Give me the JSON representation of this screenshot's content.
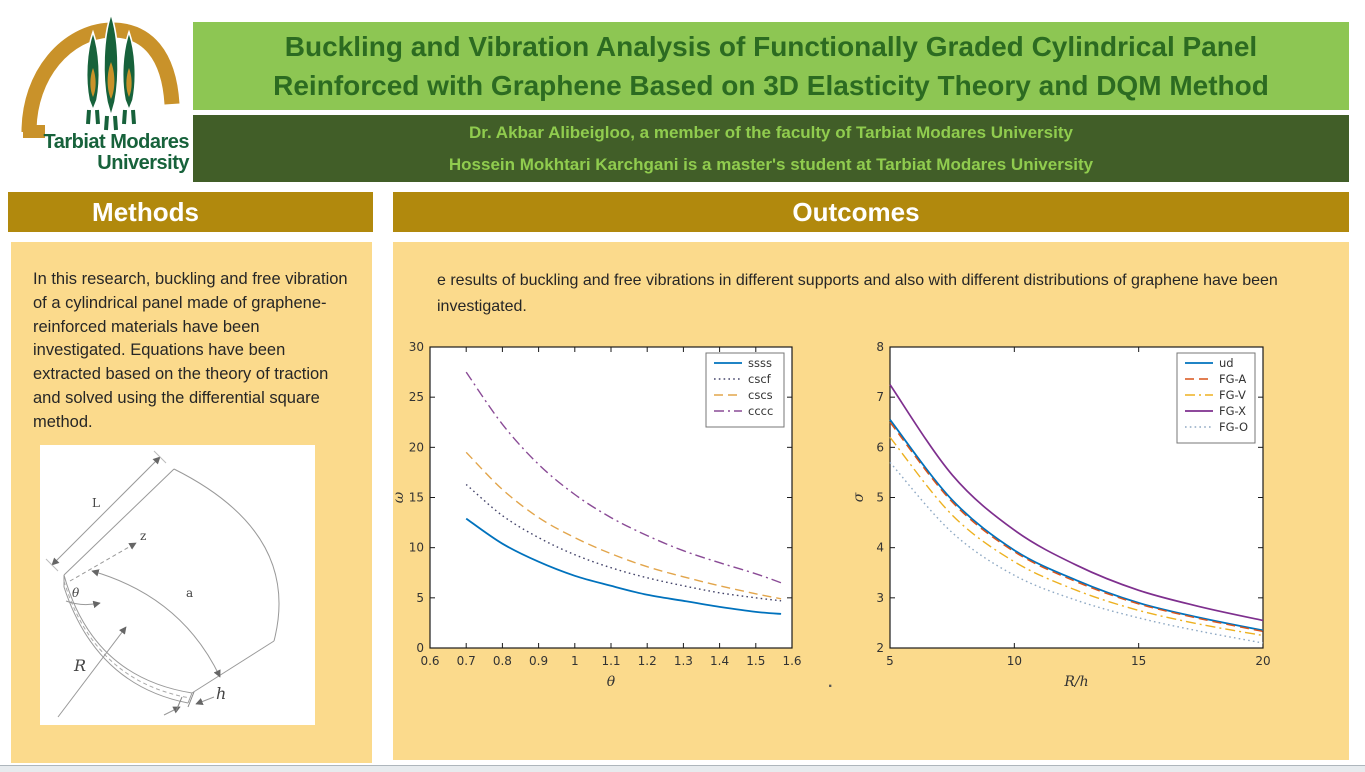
{
  "logo": {
    "university": "Tarbiat Modares University",
    "line1": "Tarbiat Modares",
    "line2": "University",
    "colors": {
      "arch": "#C9922A",
      "tree": "#17623B",
      "text": "#17623B"
    }
  },
  "header": {
    "title_line1": "Buckling and Vibration Analysis of Functionally Graded Cylindrical Panel",
    "title_line2": "Reinforced with Graphene Based on 3D Elasticity Theory and DQM Method",
    "authors_line1": "Dr. Akbar Alibeigloo, a member of the faculty of Tarbiat Modares University",
    "authors_line2": "Hossein Mokhtari Karchgani is a master's student at Tarbiat Modares University",
    "colors": {
      "title_bg": "#8DC653",
      "title_text": "#2C6B21",
      "authors_bg": "#415E28",
      "authors_text": "#90CC4E"
    }
  },
  "sections": {
    "colors": {
      "heading_bg": "#B1890D",
      "heading_text": "#FFFFFF",
      "panel_bg": "#FBDA8C",
      "body_text": "#262626"
    },
    "methods": {
      "heading": "Methods",
      "body": "In this research, buckling and free vibration of a cylindrical panel made of graphene-reinforced materials have been investigated. Equations have been extracted based on the theory of traction and solved using the differential square method.",
      "diagram_labels": {
        "L": "L",
        "z": "z",
        "theta": "θ",
        "a": "a",
        "R": "R",
        "h": "h"
      }
    },
    "outcomes": {
      "heading": "Outcomes",
      "body": "e results of buckling and free vibrations in different supports and also with different distributions of graphene have been investigated.",
      "stray_dot": "."
    }
  },
  "chart_data": [
    {
      "type": "line",
      "title": "",
      "xlabel": "θ",
      "ylabel": "ω",
      "xlim": [
        0.6,
        1.6
      ],
      "ylim": [
        0,
        30
      ],
      "xticks": [
        0.6,
        0.7,
        0.8,
        0.9,
        1,
        1.1,
        1.2,
        1.3,
        1.4,
        1.5,
        1.6
      ],
      "yticks": [
        0,
        5,
        10,
        15,
        20,
        25,
        30
      ],
      "grid": false,
      "legend_position": "top-right",
      "x": [
        0.7,
        0.8,
        0.9,
        1.0,
        1.1,
        1.2,
        1.3,
        1.4,
        1.5,
        1.57
      ],
      "series": [
        {
          "name": "ssss",
          "color": "#0072BD",
          "style": "solid",
          "width": 1.8,
          "values": [
            12.9,
            10.4,
            8.6,
            7.2,
            6.2,
            5.3,
            4.7,
            4.1,
            3.6,
            3.4
          ]
        },
        {
          "name": "cscf",
          "color": "#44446A",
          "style": "dotted",
          "width": 1.4,
          "values": [
            16.3,
            13.2,
            11.0,
            9.3,
            8.0,
            7.0,
            6.2,
            5.5,
            5.0,
            4.7
          ]
        },
        {
          "name": "cscs",
          "color": "#E2A54B",
          "style": "dashed",
          "width": 1.4,
          "values": [
            19.5,
            15.8,
            13.0,
            11.0,
            9.4,
            8.1,
            7.1,
            6.2,
            5.4,
            4.9
          ]
        },
        {
          "name": "cccc",
          "color": "#8A4B96",
          "style": "dashdot",
          "width": 1.4,
          "values": [
            27.5,
            22.3,
            18.3,
            15.3,
            13.0,
            11.2,
            9.7,
            8.5,
            7.4,
            6.5
          ]
        }
      ]
    },
    {
      "type": "line",
      "title": "",
      "xlabel": "R/h",
      "ylabel": "σ",
      "xlim": [
        5,
        20
      ],
      "ylim": [
        2,
        8
      ],
      "xticks": [
        5,
        10,
        15,
        20
      ],
      "yticks": [
        2,
        3,
        4,
        5,
        6,
        7,
        8
      ],
      "grid": false,
      "legend_position": "top-right",
      "x": [
        5,
        7.5,
        10,
        12.5,
        15,
        17.5,
        20
      ],
      "series": [
        {
          "name": "ud",
          "color": "#0072BD",
          "style": "solid",
          "width": 1.8,
          "values": [
            6.55,
            4.95,
            3.95,
            3.35,
            2.9,
            2.6,
            2.35
          ]
        },
        {
          "name": "FG-A",
          "color": "#D95319",
          "style": "dashed",
          "width": 1.4,
          "values": [
            6.5,
            4.91,
            3.92,
            3.32,
            2.88,
            2.58,
            2.33
          ]
        },
        {
          "name": "FG-V",
          "color": "#EDB120",
          "style": "dashdot",
          "width": 1.4,
          "values": [
            6.2,
            4.65,
            3.72,
            3.15,
            2.75,
            2.47,
            2.25
          ]
        },
        {
          "name": "FG-X",
          "color": "#7E2F8E",
          "style": "solid",
          "width": 1.7,
          "values": [
            7.25,
            5.45,
            4.35,
            3.65,
            3.15,
            2.82,
            2.55
          ]
        },
        {
          "name": "FG-O",
          "color": "#8FA9C4",
          "style": "dotted",
          "width": 1.4,
          "values": [
            5.7,
            4.3,
            3.45,
            2.95,
            2.6,
            2.33,
            2.1
          ]
        }
      ]
    }
  ]
}
